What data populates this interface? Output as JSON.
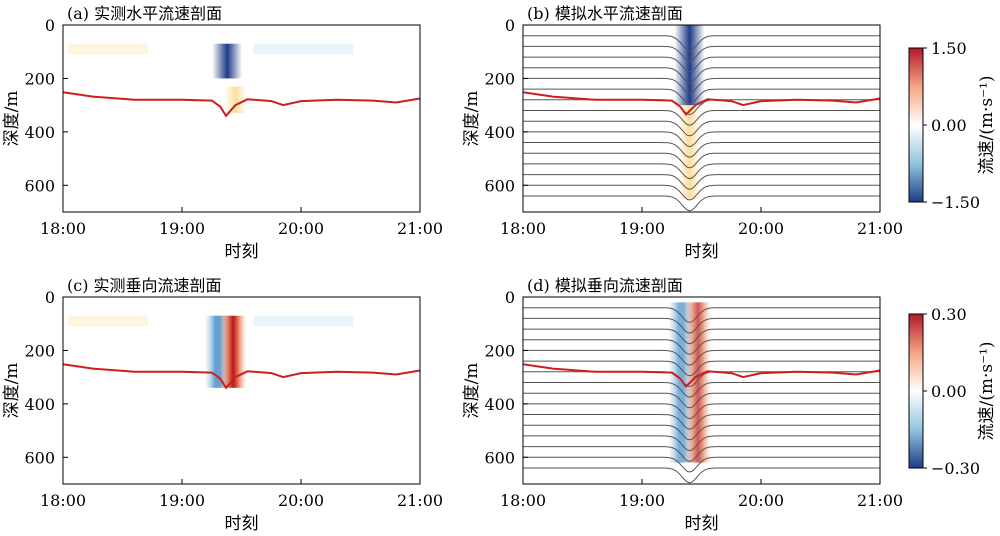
{
  "colors": {
    "positive": "#b2182b",
    "positive_mid": "#f4a582",
    "warm_yellow": "#f9c64e",
    "neutral": "#ffffff",
    "negative_mid": "#92c5de",
    "negative": "#1f3c88",
    "thermocline": "#cc1f1f",
    "isopycnal": "#555555"
  },
  "chart_data": [
    {
      "panel": "a",
      "type": "heatmap",
      "title": "(a) 实测水平流速剖面",
      "xlabel": "时刻",
      "ylabel": "深度/m",
      "x_ticks": [
        "18:00",
        "19:00",
        "20:00",
        "21:00"
      ],
      "y_ticks": [
        "0",
        "200",
        "400",
        "600"
      ],
      "ylim": [
        0,
        700
      ],
      "y_inverted": true,
      "x_range_hours": [
        18.0,
        21.0
      ],
      "velocity_field": "horizontal",
      "observed_depth_range_m": [
        70,
        340
      ],
      "features": [
        {
          "center_time_h": 19.38,
          "depth_range_m": [
            70,
            200
          ],
          "value": -1.3
        },
        {
          "center_time_h": 19.45,
          "depth_range_m": [
            230,
            330
          ],
          "value": 0.4
        }
      ],
      "red_line": [
        [
          18.0,
          252
        ],
        [
          18.25,
          268
        ],
        [
          18.6,
          280
        ],
        [
          19.0,
          280
        ],
        [
          19.25,
          283
        ],
        [
          19.32,
          305
        ],
        [
          19.37,
          340
        ],
        [
          19.45,
          300
        ],
        [
          19.55,
          278
        ],
        [
          19.75,
          285
        ],
        [
          19.85,
          300
        ],
        [
          20.0,
          285
        ],
        [
          20.3,
          280
        ],
        [
          20.6,
          283
        ],
        [
          20.8,
          290
        ],
        [
          21.0,
          275
        ]
      ]
    },
    {
      "panel": "b",
      "type": "heatmap",
      "title": "(b) 模拟水平流速剖面",
      "xlabel": "时刻",
      "ylabel": "深度/m",
      "x_ticks": [
        "18:00",
        "19:00",
        "20:00",
        "21:00"
      ],
      "y_ticks": [
        "0",
        "200",
        "400",
        "600"
      ],
      "ylim": [
        0,
        700
      ],
      "y_inverted": true,
      "x_range_hours": [
        18.0,
        21.0
      ],
      "velocity_field": "horizontal",
      "features": [
        {
          "center_time_h": 19.4,
          "depth_range_m": [
            0,
            300
          ],
          "value": -1.5
        },
        {
          "center_time_h": 19.4,
          "depth_range_m": [
            300,
            650
          ],
          "value": 0.45
        }
      ],
      "isopycnal_depths_m": [
        40,
        80,
        120,
        160,
        200,
        240,
        280,
        320,
        360,
        400,
        440,
        480,
        520,
        560,
        600,
        640
      ],
      "isopycnal_trough_time_h": 19.4,
      "red_line": [
        [
          18.0,
          252
        ],
        [
          18.25,
          268
        ],
        [
          18.6,
          280
        ],
        [
          19.0,
          280
        ],
        [
          19.25,
          283
        ],
        [
          19.32,
          305
        ],
        [
          19.37,
          335
        ],
        [
          19.45,
          300
        ],
        [
          19.55,
          278
        ],
        [
          19.75,
          285
        ],
        [
          19.85,
          300
        ],
        [
          20.0,
          285
        ],
        [
          20.3,
          280
        ],
        [
          20.6,
          283
        ],
        [
          20.8,
          290
        ],
        [
          21.0,
          275
        ]
      ]
    },
    {
      "panel": "c",
      "type": "heatmap",
      "title": "(c) 实测垂向流速剖面",
      "xlabel": "时刻",
      "ylabel": "深度/m",
      "x_ticks": [
        "18:00",
        "19:00",
        "20:00",
        "21:00"
      ],
      "y_ticks": [
        "0",
        "200",
        "400",
        "600"
      ],
      "ylim": [
        0,
        700
      ],
      "y_inverted": true,
      "x_range_hours": [
        18.0,
        21.0
      ],
      "velocity_field": "vertical",
      "observed_depth_range_m": [
        70,
        340
      ],
      "features": [
        {
          "center_time_h": 19.3,
          "depth_range_m": [
            70,
            340
          ],
          "value": -0.2
        },
        {
          "center_time_h": 19.43,
          "depth_range_m": [
            70,
            340
          ],
          "value": 0.3
        }
      ],
      "red_line": [
        [
          18.0,
          252
        ],
        [
          18.25,
          268
        ],
        [
          18.6,
          280
        ],
        [
          19.0,
          280
        ],
        [
          19.25,
          283
        ],
        [
          19.32,
          305
        ],
        [
          19.37,
          340
        ],
        [
          19.45,
          300
        ],
        [
          19.55,
          278
        ],
        [
          19.75,
          285
        ],
        [
          19.85,
          300
        ],
        [
          20.0,
          285
        ],
        [
          20.3,
          280
        ],
        [
          20.6,
          283
        ],
        [
          20.8,
          290
        ],
        [
          21.0,
          275
        ]
      ]
    },
    {
      "panel": "d",
      "type": "heatmap",
      "title": "(d) 模拟垂向流速剖面",
      "xlabel": "时刻",
      "ylabel": "深度/m",
      "x_ticks": [
        "18:00",
        "19:00",
        "20:00",
        "21:00"
      ],
      "y_ticks": [
        "0",
        "200",
        "400",
        "600"
      ],
      "ylim": [
        0,
        700
      ],
      "y_inverted": true,
      "x_range_hours": [
        18.0,
        21.0
      ],
      "velocity_field": "vertical",
      "features": [
        {
          "center_time_h": 19.33,
          "depth_range_m": [
            20,
            620
          ],
          "value": -0.15
        },
        {
          "center_time_h": 19.47,
          "depth_range_m": [
            20,
            620
          ],
          "value": 0.15
        }
      ],
      "isopycnal_depths_m": [
        40,
        80,
        120,
        160,
        200,
        240,
        280,
        320,
        360,
        400,
        440,
        480,
        520,
        560,
        600,
        640
      ],
      "isopycnal_trough_time_h": 19.4,
      "red_line": [
        [
          18.0,
          252
        ],
        [
          18.25,
          268
        ],
        [
          18.6,
          280
        ],
        [
          19.0,
          280
        ],
        [
          19.25,
          283
        ],
        [
          19.32,
          305
        ],
        [
          19.37,
          335
        ],
        [
          19.45,
          300
        ],
        [
          19.55,
          278
        ],
        [
          19.75,
          285
        ],
        [
          19.85,
          300
        ],
        [
          20.0,
          285
        ],
        [
          20.3,
          280
        ],
        [
          20.6,
          283
        ],
        [
          20.8,
          290
        ],
        [
          21.0,
          275
        ]
      ]
    }
  ],
  "colorbars": [
    {
      "label": "流速/(m·s⁻¹)",
      "ticks": [
        "1.50",
        "0.00",
        "−1.50"
      ],
      "range": [
        -1.5,
        1.5
      ]
    },
    {
      "label": "流速/(m·s⁻¹)",
      "ticks": [
        "0.30",
        "0.00",
        "−0.30"
      ],
      "range": [
        -0.3,
        0.3
      ]
    }
  ]
}
